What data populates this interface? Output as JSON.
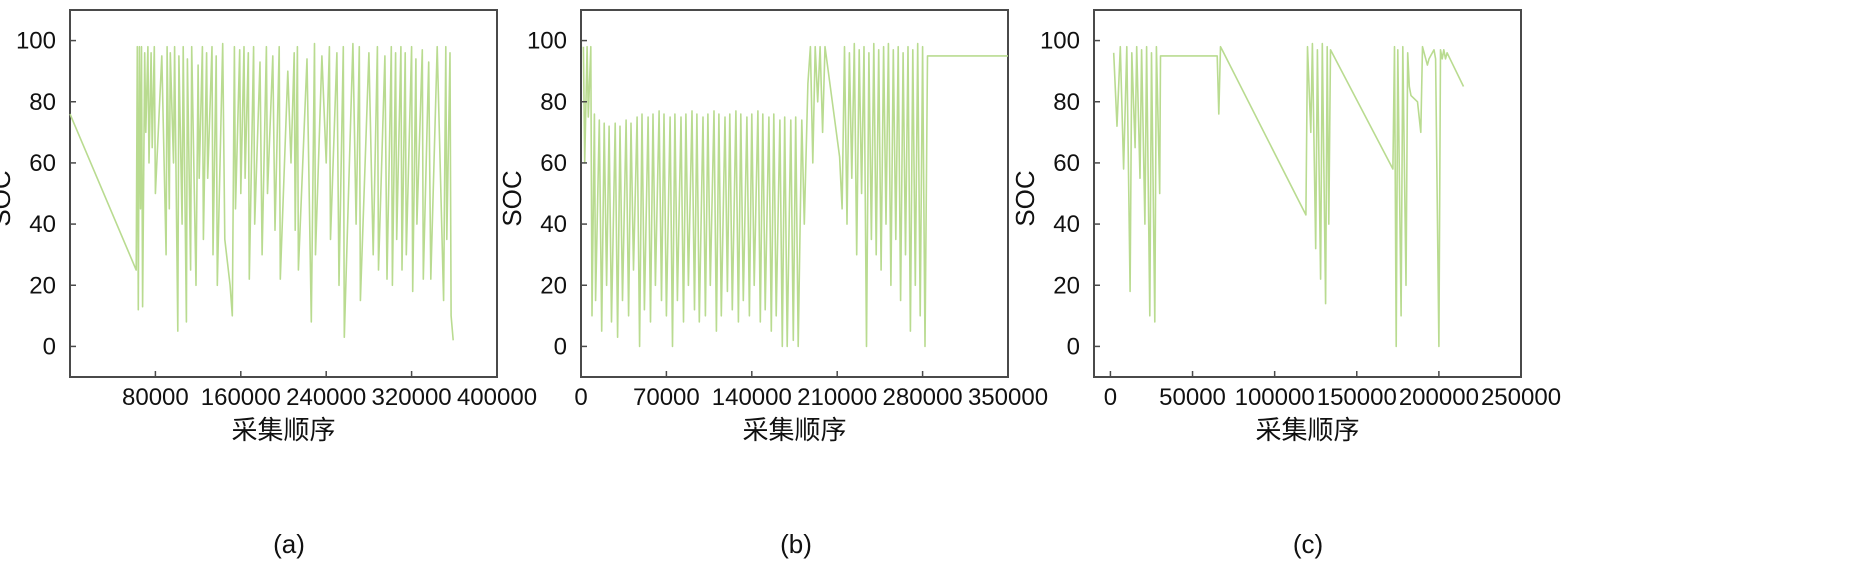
{
  "chart_data": [
    {
      "type": "line",
      "panel_label": "(a)",
      "xlabel": "采集顺序",
      "ylabel": "SOC",
      "xlim": [
        0,
        400000
      ],
      "ylim": [
        -10,
        110
      ],
      "xticks": [
        80000,
        160000,
        240000,
        320000,
        400000
      ],
      "xtick_labels": [
        "80000",
        "160000",
        "240000",
        "320000",
        "400000"
      ],
      "yticks": [
        0,
        20,
        40,
        60,
        80,
        100
      ],
      "ytick_labels": [
        "0",
        "20",
        "40",
        "60",
        "80",
        "100"
      ],
      "grid": false,
      "color": "#b5d98a",
      "series": [
        {
          "x": [
            0,
            62000,
            63000,
            64000,
            65000,
            66000,
            67000,
            68000,
            70000,
            71000,
            73000,
            74000,
            76000,
            77000,
            79000,
            80000,
            86000,
            90000,
            91000,
            93000,
            94000,
            97000,
            98000,
            101000,
            102000,
            105000,
            106000,
            109000,
            110000,
            113000,
            114000,
            118000,
            120000,
            121000,
            124000,
            125000,
            128000,
            129000,
            133000,
            134000,
            137000,
            138000,
            143000,
            145000,
            150000,
            152000,
            154000,
            155000,
            159000,
            160000,
            163000,
            164000,
            167000,
            168000,
            172000,
            173000,
            178000,
            180000,
            184000,
            185000,
            190000,
            192000,
            196000,
            197000,
            204000,
            207000,
            210000,
            211000,
            213000,
            214000,
            222000,
            226000,
            229000,
            230000,
            236000,
            240000,
            243000,
            244000,
            250000,
            252000,
            256000,
            257000,
            265000,
            268000,
            271000,
            272000,
            280000,
            284000,
            288000,
            289000,
            295000,
            297000,
            301000,
            302000,
            305000,
            306000,
            310000,
            311000,
            314000,
            315000,
            320000,
            321000,
            324000,
            325000,
            330000,
            331000,
            336000,
            338000,
            344000,
            350000,
            352000,
            353000,
            356000,
            357000,
            359000
          ],
          "y": [
            76,
            25,
            98,
            12,
            98,
            45,
            98,
            13,
            96,
            70,
            98,
            60,
            96,
            65,
            98,
            50,
            95,
            30,
            98,
            45,
            96,
            60,
            98,
            5,
            95,
            40,
            98,
            8,
            94,
            25,
            98,
            20,
            92,
            55,
            98,
            35,
            96,
            55,
            98,
            30,
            95,
            20,
            99,
            35,
            20,
            10,
            98,
            45,
            97,
            50,
            98,
            55,
            96,
            22,
            98,
            40,
            93,
            30,
            98,
            50,
            95,
            38,
            98,
            22,
            90,
            60,
            96,
            38,
            98,
            25,
            94,
            8,
            99,
            30,
            95,
            60,
            98,
            35,
            96,
            20,
            98,
            3,
            99,
            40,
            98,
            15,
            96,
            30,
            98,
            25,
            95,
            22,
            98,
            20,
            96,
            35,
            98,
            25,
            96,
            30,
            98,
            18,
            94,
            40,
            97,
            22,
            93,
            22,
            98,
            15,
            98,
            35,
            96,
            10,
            2
          ]
        }
      ]
    },
    {
      "type": "line",
      "panel_label": "(b)",
      "xlabel": "采集顺序",
      "ylabel": "SOC",
      "xlim": [
        0,
        350000
      ],
      "ylim": [
        -10,
        110
      ],
      "xticks": [
        0,
        70000,
        140000,
        210000,
        280000,
        350000
      ],
      "xtick_labels": [
        "0",
        "70000",
        "140000",
        "210000",
        "280000",
        "350000"
      ],
      "yticks": [
        0,
        20,
        40,
        60,
        80,
        100
      ],
      "ytick_labels": [
        "0",
        "20",
        "40",
        "60",
        "80",
        "100"
      ],
      "grid": false,
      "color": "#b5d98a",
      "series": [
        {
          "x": [
            2000,
            3000,
            5000,
            6000,
            8000,
            9000,
            11000,
            12000,
            15000,
            17000,
            19000,
            21000,
            23000,
            25000,
            28000,
            30000,
            32000,
            34000,
            37000,
            39000,
            41000,
            43000,
            46000,
            48000,
            50000,
            52000,
            55000,
            57000,
            59000,
            61000,
            64000,
            66000,
            68000,
            70000,
            73000,
            75000,
            77000,
            79000,
            82000,
            84000,
            86000,
            88000,
            91000,
            93000,
            95000,
            97000,
            100000,
            102000,
            104000,
            106000,
            109000,
            111000,
            113000,
            115000,
            118000,
            120000,
            122000,
            124000,
            127000,
            129000,
            131000,
            133000,
            136000,
            138000,
            140000,
            142000,
            145000,
            147000,
            149000,
            151000,
            154000,
            156000,
            158000,
            160000,
            163000,
            165000,
            167000,
            169000,
            172000,
            174000,
            176000,
            178000,
            181000,
            183000,
            186000,
            188000,
            190000,
            192000,
            194000,
            196000,
            198000,
            200000,
            212000,
            214000,
            216000,
            218000,
            220000,
            222000,
            224000,
            226000,
            228000,
            230000,
            232000,
            234000,
            236000,
            238000,
            240000,
            242000,
            244000,
            246000,
            248000,
            250000,
            252000,
            254000,
            256000,
            258000,
            260000,
            262000,
            264000,
            266000,
            268000,
            270000,
            272000,
            274000,
            276000,
            278000,
            280000,
            282000,
            284000,
            350000
          ],
          "y": [
            98,
            60,
            98,
            75,
            98,
            10,
            76,
            15,
            74,
            5,
            73,
            20,
            72,
            8,
            73,
            3,
            72,
            15,
            74,
            10,
            73,
            25,
            75,
            0,
            76,
            12,
            75,
            8,
            76,
            20,
            77,
            15,
            76,
            10,
            75,
            0,
            76,
            15,
            75,
            8,
            76,
            20,
            77,
            12,
            76,
            8,
            75,
            10,
            76,
            20,
            77,
            5,
            76,
            10,
            75,
            18,
            76,
            12,
            77,
            8,
            76,
            15,
            75,
            10,
            76,
            20,
            77,
            8,
            76,
            12,
            75,
            5,
            76,
            10,
            74,
            0,
            75,
            0,
            74,
            2,
            75,
            0,
            74,
            40,
            86,
            98,
            60,
            98,
            80,
            98,
            70,
            98,
            62,
            45,
            98,
            40,
            96,
            55,
            99,
            30,
            97,
            50,
            98,
            0,
            96,
            35,
            99,
            30,
            97,
            25,
            98,
            40,
            99,
            20,
            97,
            35,
            98,
            15,
            96,
            30,
            98,
            5,
            97,
            20,
            99,
            10,
            98,
            0,
            95,
            95
          ]
        }
      ]
    },
    {
      "type": "line",
      "panel_label": "(c)",
      "xlabel": "采集顺序",
      "ylabel": "SOC",
      "xlim": [
        -10000,
        250000
      ],
      "ylim": [
        -10,
        110
      ],
      "xticks": [
        0,
        50000,
        100000,
        150000,
        200000,
        250000
      ],
      "xtick_labels": [
        "0",
        "50000",
        "100000",
        "150000",
        "200000",
        "250000"
      ],
      "yticks": [
        0,
        20,
        40,
        60,
        80,
        100
      ],
      "ytick_labels": [
        "0",
        "20",
        "40",
        "60",
        "80",
        "100"
      ],
      "grid": false,
      "color": "#b5d98a",
      "series": [
        {
          "x": [
            2000,
            4000,
            6000,
            8000,
            10000,
            12000,
            13000,
            15000,
            16000,
            18000,
            19000,
            21000,
            22000,
            24000,
            25000,
            27000,
            28000,
            30000,
            30500,
            65000,
            66000,
            67000,
            68000,
            119000,
            120000,
            122000,
            123000,
            125000,
            126000,
            128000,
            129000,
            131000,
            132000,
            133000,
            134000,
            172000,
            173000,
            174000,
            175000,
            177000,
            178000,
            180000,
            181000,
            182000,
            183000,
            187000,
            189000,
            190000,
            191000,
            193000,
            194000,
            197000,
            198000,
            200000,
            201000,
            202000,
            203000,
            204000,
            205000,
            215000
          ],
          "y": [
            96,
            72,
            98,
            58,
            98,
            18,
            96,
            65,
            98,
            55,
            97,
            40,
            98,
            10,
            96,
            8,
            98,
            50,
            95,
            95,
            76,
            98,
            97,
            43,
            98,
            70,
            99,
            32,
            97,
            22,
            99,
            14,
            98,
            40,
            97,
            58,
            98,
            0,
            97,
            10,
            98,
            20,
            96,
            85,
            82,
            80,
            70,
            98,
            96,
            92,
            94,
            97,
            94,
            0,
            97,
            94,
            97,
            94,
            96,
            85
          ]
        }
      ]
    }
  ]
}
